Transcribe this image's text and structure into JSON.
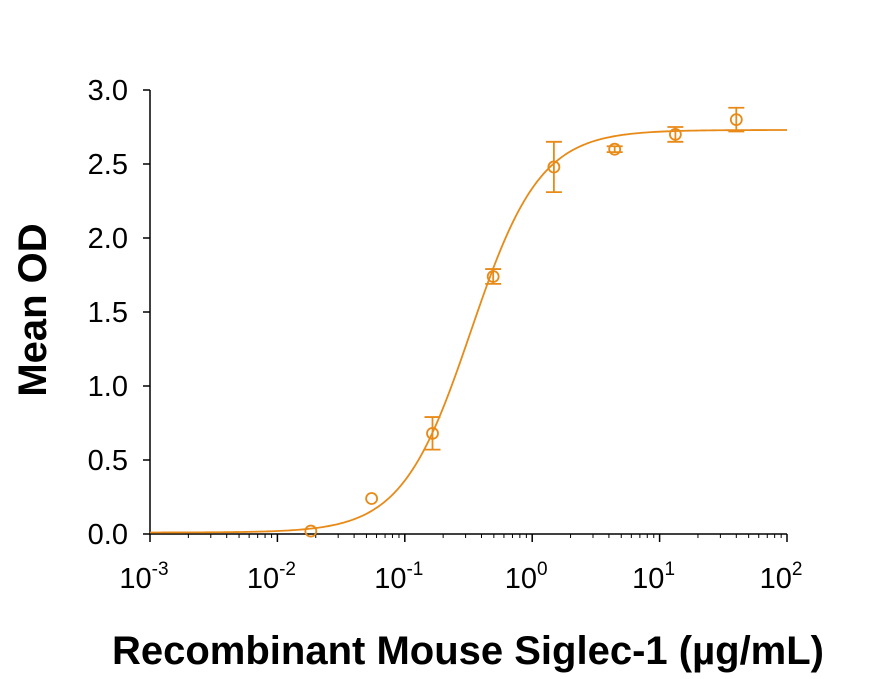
{
  "chart_data": {
    "type": "scatter",
    "title": "",
    "xlabel": "Recombinant Mouse Siglec-1 (µg/mL)",
    "ylabel": "Mean OD",
    "x_scale": "log",
    "xlim": [
      0.001,
      100
    ],
    "ylim": [
      0,
      3.0
    ],
    "x_ticks": [
      {
        "base": "10",
        "exp": "-3"
      },
      {
        "base": "10",
        "exp": "-2"
      },
      {
        "base": "10",
        "exp": "-1"
      },
      {
        "base": "10",
        "exp": "0"
      },
      {
        "base": "10",
        "exp": "1"
      },
      {
        "base": "10",
        "exp": "2"
      }
    ],
    "y_ticks": [
      "0.0",
      "0.5",
      "1.0",
      "1.5",
      "2.0",
      "2.5",
      "3.0"
    ],
    "grid": false,
    "legend": "none",
    "color": "#E88A17",
    "series": [
      {
        "points": [
          {
            "x": 0.0183,
            "y": 0.02,
            "err": 0.0
          },
          {
            "x": 0.0549,
            "y": 0.24,
            "err": 0.0
          },
          {
            "x": 0.165,
            "y": 0.68,
            "err": 0.11
          },
          {
            "x": 0.494,
            "y": 1.74,
            "err": 0.05
          },
          {
            "x": 1.48,
            "y": 2.48,
            "err": 0.17
          },
          {
            "x": 4.44,
            "y": 2.6,
            "err": 0.02
          },
          {
            "x": 13.3,
            "y": 2.7,
            "err": 0.05
          },
          {
            "x": 40.0,
            "y": 2.8,
            "err": 0.08
          }
        ],
        "fit": {
          "bottom": 0.01,
          "top": 2.73,
          "ec50": 0.33,
          "hill": 1.6
        }
      }
    ]
  }
}
